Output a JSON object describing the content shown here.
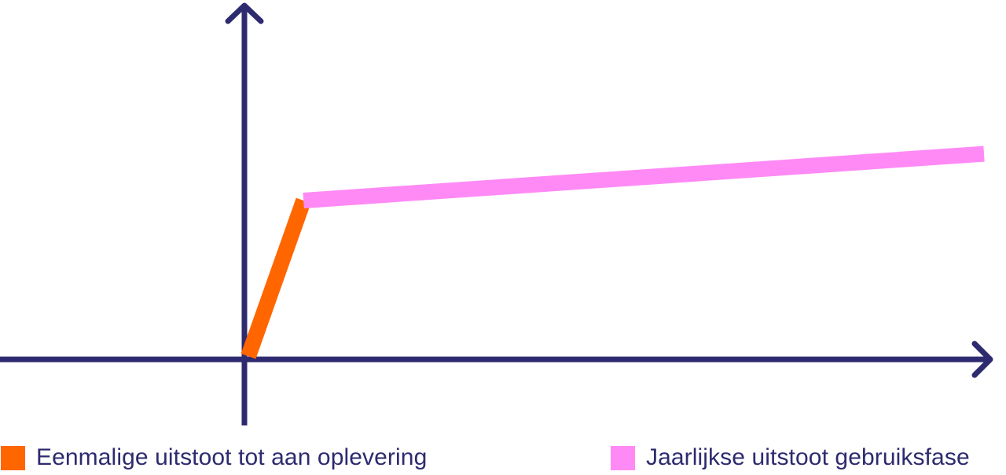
{
  "chart_data": {
    "type": "line",
    "title": "",
    "xlabel": "",
    "ylabel": "",
    "grid": false,
    "axes_color": "#2e2a6f",
    "legend_position": "bottom",
    "series": [
      {
        "name": "Eenmalige uitstoot tot aan oplevering",
        "color": "#ff6600",
        "x": [
          0,
          0.15
        ],
        "y": [
          0,
          1.0
        ]
      },
      {
        "name": "Jaarlijkse uitstoot gebruiksfase",
        "color": "#ff8af5",
        "x": [
          0.15,
          2.0
        ],
        "y": [
          1.0,
          1.3
        ]
      }
    ]
  }
}
